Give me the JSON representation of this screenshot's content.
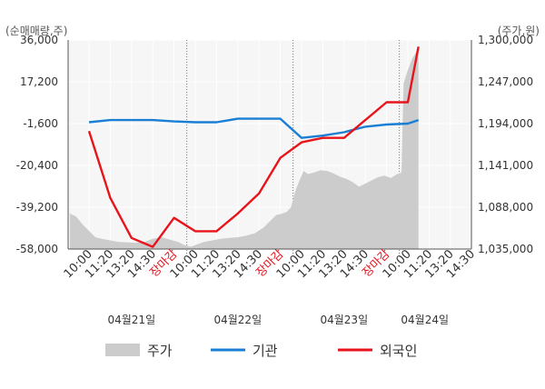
{
  "chart_data": {
    "type": "line",
    "units": {
      "left": "(순매매량,주)",
      "right": "(주가,원)"
    },
    "left_axis": {
      "min": -58000,
      "max": 36000,
      "ticks": [
        "36,000",
        "17,200",
        "-1,600",
        "-20,400",
        "-39,200",
        "-58,000"
      ]
    },
    "right_axis": {
      "min": 1035000,
      "max": 1300000,
      "ticks": [
        "1,300,000",
        "1,247,000",
        "1,194,000",
        "1,141,000",
        "1,088,000",
        "1,035,000"
      ]
    },
    "x_ticks": [
      {
        "label": "10:00"
      },
      {
        "label": "11:20"
      },
      {
        "label": "13:20"
      },
      {
        "label": "14:30"
      },
      {
        "label": "장마감",
        "close": true
      },
      {
        "label": "10:00"
      },
      {
        "label": "11:20"
      },
      {
        "label": "13:20"
      },
      {
        "label": "14:30"
      },
      {
        "label": "장마감",
        "close": true
      },
      {
        "label": "10:00"
      },
      {
        "label": "11:20"
      },
      {
        "label": "13:20"
      },
      {
        "label": "14:30"
      },
      {
        "label": "장마감",
        "close": true
      },
      {
        "label": "10:00"
      },
      {
        "label": "11:20"
      },
      {
        "label": "13:20"
      },
      {
        "label": "14:30"
      }
    ],
    "dates": [
      {
        "label": "04월21일",
        "slot": 2
      },
      {
        "label": "04월22일",
        "slot": 7
      },
      {
        "label": "04월23일",
        "slot": 12
      },
      {
        "label": "04월24일",
        "slot": 15.8
      }
    ],
    "day_separators": [
      4.6,
      9.6,
      14.6
    ],
    "series": [
      {
        "name": "주가",
        "kind": "area",
        "axis": "right",
        "color": "#cccccc",
        "points": [
          [
            -0.9,
            1080000
          ],
          [
            -0.6,
            1076000
          ],
          [
            -0.3,
            1066000
          ],
          [
            0,
            1058000
          ],
          [
            0.3,
            1050000
          ],
          [
            0.6,
            1048000
          ],
          [
            1,
            1046000
          ],
          [
            1.4,
            1044000
          ],
          [
            1.8,
            1043500
          ],
          [
            2.2,
            1043000
          ],
          [
            2.6,
            1044000
          ],
          [
            3.0,
            1048000
          ],
          [
            3.4,
            1050000
          ],
          [
            3.8,
            1047000
          ],
          [
            4.2,
            1044000
          ],
          [
            4.5,
            1040000
          ],
          [
            4.8,
            1038000
          ],
          [
            5.1,
            1041000
          ],
          [
            5.4,
            1044000
          ],
          [
            5.8,
            1046000
          ],
          [
            6.2,
            1048000
          ],
          [
            6.6,
            1049000
          ],
          [
            7.0,
            1050000
          ],
          [
            7.4,
            1052000
          ],
          [
            7.8,
            1055000
          ],
          [
            8.2,
            1062000
          ],
          [
            8.5,
            1070000
          ],
          [
            8.8,
            1078000
          ],
          [
            9.1,
            1080000
          ],
          [
            9.3,
            1082000
          ],
          [
            9.5,
            1088000
          ],
          [
            9.7,
            1108000
          ],
          [
            9.9,
            1122000
          ],
          [
            10.1,
            1134000
          ],
          [
            10.3,
            1130000
          ],
          [
            10.6,
            1132000
          ],
          [
            10.9,
            1135000
          ],
          [
            11.2,
            1134000
          ],
          [
            11.5,
            1131000
          ],
          [
            11.8,
            1127000
          ],
          [
            12.1,
            1124000
          ],
          [
            12.4,
            1120000
          ],
          [
            12.7,
            1114000
          ],
          [
            13.0,
            1118000
          ],
          [
            13.3,
            1122000
          ],
          [
            13.6,
            1126000
          ],
          [
            13.9,
            1128000
          ],
          [
            14.2,
            1125000
          ],
          [
            14.5,
            1130000
          ],
          [
            14.7,
            1132000
          ],
          [
            14.8,
            1245000
          ],
          [
            15.0,
            1262000
          ],
          [
            15.2,
            1276000
          ],
          [
            15.4,
            1285000
          ],
          [
            15.5,
            1290000
          ]
        ]
      },
      {
        "name": "기관",
        "kind": "line",
        "axis": "left",
        "color": "#1a7fd4",
        "points": [
          [
            0,
            -1000
          ],
          [
            1,
            0
          ],
          [
            2,
            0
          ],
          [
            3,
            0
          ],
          [
            4,
            -600
          ],
          [
            5,
            -1000
          ],
          [
            6,
            -1000
          ],
          [
            7,
            600
          ],
          [
            8,
            600
          ],
          [
            9,
            600
          ],
          [
            10,
            -8000
          ],
          [
            11,
            -7000
          ],
          [
            12,
            -5500
          ],
          [
            13,
            -3000
          ],
          [
            14,
            -2000
          ],
          [
            15,
            -1600
          ],
          [
            15.5,
            0
          ]
        ]
      },
      {
        "name": "외국인",
        "kind": "line",
        "axis": "left",
        "color": "#e8141b",
        "points": [
          [
            0,
            -5000
          ],
          [
            1,
            -35000
          ],
          [
            2,
            -53000
          ],
          [
            3,
            -57000
          ],
          [
            4,
            -44000
          ],
          [
            5,
            -50000
          ],
          [
            6,
            -50000
          ],
          [
            7,
            -42000
          ],
          [
            8,
            -33000
          ],
          [
            9,
            -17000
          ],
          [
            10,
            -10000
          ],
          [
            11,
            -8000
          ],
          [
            12,
            -8000
          ],
          [
            13,
            0
          ],
          [
            14,
            8000
          ],
          [
            15,
            8000
          ],
          [
            15.5,
            33000
          ]
        ]
      }
    ]
  }
}
